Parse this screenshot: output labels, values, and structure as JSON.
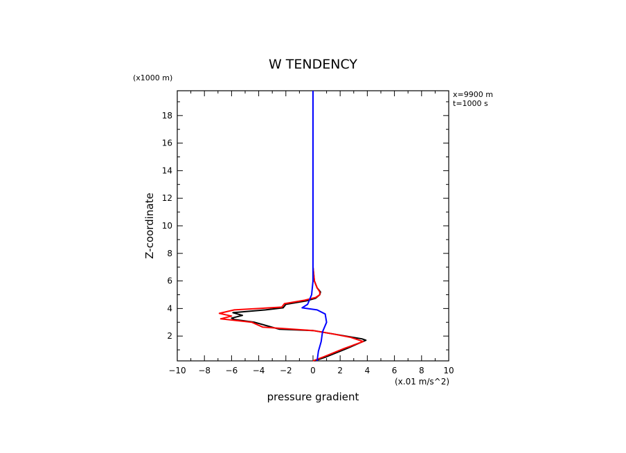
{
  "chart_data": {
    "type": "line",
    "title": "W TENDENCY",
    "xlabel": "pressure gradient",
    "ylabel": "Z-coordinate",
    "x_unit": "(x.01 m/s^2)",
    "y_unit": "(x1000 m)",
    "annotations": [
      "x=9900 m",
      "t=1000 s"
    ],
    "xlim": [
      -10,
      10
    ],
    "ylim": [
      0.2,
      19.8
    ],
    "xticks": [
      -10,
      -8,
      -6,
      -4,
      -2,
      0,
      2,
      4,
      6,
      8,
      10
    ],
    "yticks": [
      2,
      4,
      6,
      8,
      10,
      12,
      14,
      16,
      18
    ],
    "grid": false,
    "series": [
      {
        "color": "#000000",
        "points": [
          [
            0.1,
            0.2
          ],
          [
            1.0,
            0.5
          ],
          [
            2.5,
            1.1
          ],
          [
            3.9,
            1.7
          ],
          [
            3.6,
            1.8
          ],
          [
            1.5,
            2.15
          ],
          [
            0,
            2.4
          ],
          [
            -2.5,
            2.5
          ],
          [
            -4.3,
            3.0
          ],
          [
            -5.8,
            3.2
          ],
          [
            -6.0,
            3.3
          ],
          [
            -5.2,
            3.5
          ],
          [
            -5.9,
            3.7
          ],
          [
            -3.5,
            3.9
          ],
          [
            -2.2,
            4.05
          ],
          [
            -2.0,
            4.3
          ],
          [
            -0.5,
            4.55
          ],
          [
            0.2,
            4.75
          ],
          [
            0.5,
            5.0
          ],
          [
            0.55,
            5.2
          ],
          [
            0.3,
            5.5
          ],
          [
            0.1,
            6.0
          ],
          [
            0,
            7
          ],
          [
            0,
            10
          ],
          [
            0,
            14
          ],
          [
            0,
            19.8
          ]
        ]
      },
      {
        "color": "#ff0000",
        "points": [
          [
            0,
            0.2
          ],
          [
            0.8,
            0.5
          ],
          [
            2.3,
            1.1
          ],
          [
            3.7,
            1.6
          ],
          [
            2.8,
            1.9
          ],
          [
            1.5,
            2.15
          ],
          [
            0,
            2.4
          ],
          [
            -3.7,
            2.65
          ],
          [
            -4.5,
            3.0
          ],
          [
            -6.8,
            3.25
          ],
          [
            -6.0,
            3.45
          ],
          [
            -6.9,
            3.65
          ],
          [
            -5.8,
            3.9
          ],
          [
            -2.3,
            4.1
          ],
          [
            -2.1,
            4.35
          ],
          [
            -0.6,
            4.6
          ],
          [
            0.2,
            4.8
          ],
          [
            0.5,
            5.0
          ],
          [
            0.5,
            5.2
          ],
          [
            0.3,
            5.5
          ],
          [
            0.1,
            6.0
          ],
          [
            0,
            7
          ],
          [
            0,
            10
          ],
          [
            0,
            14
          ],
          [
            0,
            19.8
          ]
        ]
      },
      {
        "color": "#0000ff",
        "points": [
          [
            0.3,
            0.2
          ],
          [
            0.4,
            0.9
          ],
          [
            0.6,
            1.6
          ],
          [
            0.7,
            2.3
          ],
          [
            1.0,
            3.0
          ],
          [
            0.9,
            3.6
          ],
          [
            0.3,
            3.9
          ],
          [
            -0.8,
            4.05
          ],
          [
            -0.4,
            4.3
          ],
          [
            -0.1,
            5.0
          ],
          [
            0,
            6
          ],
          [
            0,
            10
          ],
          [
            0,
            15
          ],
          [
            0,
            19.8
          ]
        ]
      }
    ]
  }
}
